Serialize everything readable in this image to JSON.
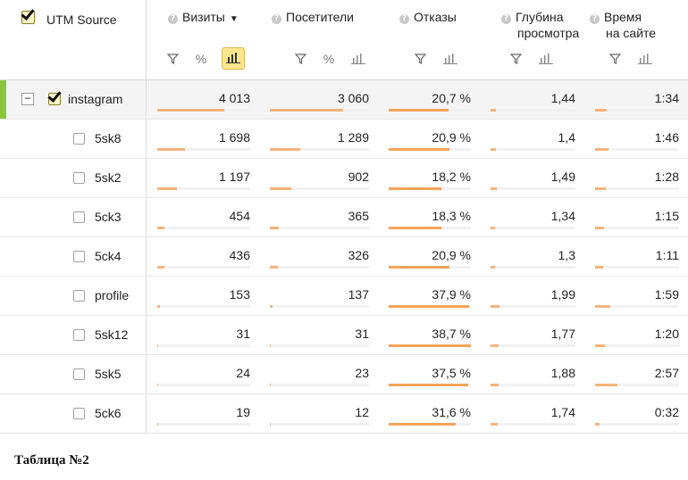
{
  "header": {
    "dimension_label": "UTM Source",
    "dimension_checked": true,
    "columns": [
      {
        "label": "Визиты",
        "sorted": true,
        "controls": [
          "filter-icon",
          "percent-icon",
          "bars-icon-active"
        ]
      },
      {
        "label": "Посетители",
        "controls": [
          "filter-icon",
          "percent-icon",
          "bars-icon"
        ]
      },
      {
        "label": "Отказы",
        "controls": [
          "filter-icon",
          "bars-icon"
        ]
      },
      {
        "label": "Глубина",
        "label2": "просмотра",
        "controls": [
          "filter-icon",
          "bars-icon"
        ]
      },
      {
        "label": "Время",
        "label2": "на сайте",
        "controls": [
          "filter-icon",
          "bars-icon"
        ]
      }
    ]
  },
  "parent_row": {
    "name": "instagram",
    "checked": true,
    "visits": "4 013",
    "visitors": "3 060",
    "bounce": "20,7 %",
    "depth": "1,44",
    "time": "1:34",
    "fill": {
      "visits": 0.72,
      "visitors": 0.74,
      "bounce": 0.73,
      "depth": 0.06,
      "time": 0.14
    }
  },
  "rows": [
    {
      "name": "5sk8",
      "visits": "1 698",
      "visitors": "1 289",
      "bounce": "20,9 %",
      "depth": "1,4",
      "time": "1:46",
      "fill": {
        "visits": 0.3,
        "visitors": 0.31,
        "bounce": 0.74,
        "depth": 0.06,
        "time": 0.16
      }
    },
    {
      "name": "5sk2",
      "visits": "1 197",
      "visitors": "902",
      "bounce": "18,2 %",
      "depth": "1,49",
      "time": "1:28",
      "fill": {
        "visits": 0.21,
        "visitors": 0.22,
        "bounce": 0.64,
        "depth": 0.07,
        "time": 0.13
      }
    },
    {
      "name": "5ck3",
      "visits": "454",
      "visitors": "365",
      "bounce": "18,3 %",
      "depth": "1,34",
      "time": "1:15",
      "fill": {
        "visits": 0.08,
        "visitors": 0.09,
        "bounce": 0.64,
        "depth": 0.05,
        "time": 0.11
      }
    },
    {
      "name": "5ck4",
      "visits": "436",
      "visitors": "326",
      "bounce": "20,9 %",
      "depth": "1,3",
      "time": "1:11",
      "fill": {
        "visits": 0.08,
        "visitors": 0.08,
        "bounce": 0.74,
        "depth": 0.05,
        "time": 0.1
      }
    },
    {
      "name": "profile",
      "visits": "153",
      "visitors": "137",
      "bounce": "37,9 %",
      "depth": "1,99",
      "time": "1:59",
      "fill": {
        "visits": 0.03,
        "visitors": 0.03,
        "bounce": 0.98,
        "depth": 0.1,
        "time": 0.18
      }
    },
    {
      "name": "5sk12",
      "visits": "31",
      "visitors": "31",
      "bounce": "38,7 %",
      "depth": "1,77",
      "time": "1:20",
      "fill": {
        "visits": 0.01,
        "visitors": 0.01,
        "bounce": 1.0,
        "depth": 0.09,
        "time": 0.12
      }
    },
    {
      "name": "5sk5",
      "visits": "24",
      "visitors": "23",
      "bounce": "37,5 %",
      "depth": "1,88",
      "time": "2:57",
      "fill": {
        "visits": 0.01,
        "visitors": 0.01,
        "bounce": 0.97,
        "depth": 0.09,
        "time": 0.27
      }
    },
    {
      "name": "5ck6",
      "visits": "19",
      "visitors": "12",
      "bounce": "31,6 %",
      "depth": "1,74",
      "time": "0:32",
      "fill": {
        "visits": 0.01,
        "visitors": 0.01,
        "bounce": 0.82,
        "depth": 0.08,
        "time": 0.05
      }
    }
  ],
  "caption": "Таблица №2",
  "colors": {
    "bar": "#f7b27a",
    "bar_bounce": "#f5a358",
    "accent_stripe": "#8cc63f",
    "active_control": "#fde68c"
  }
}
